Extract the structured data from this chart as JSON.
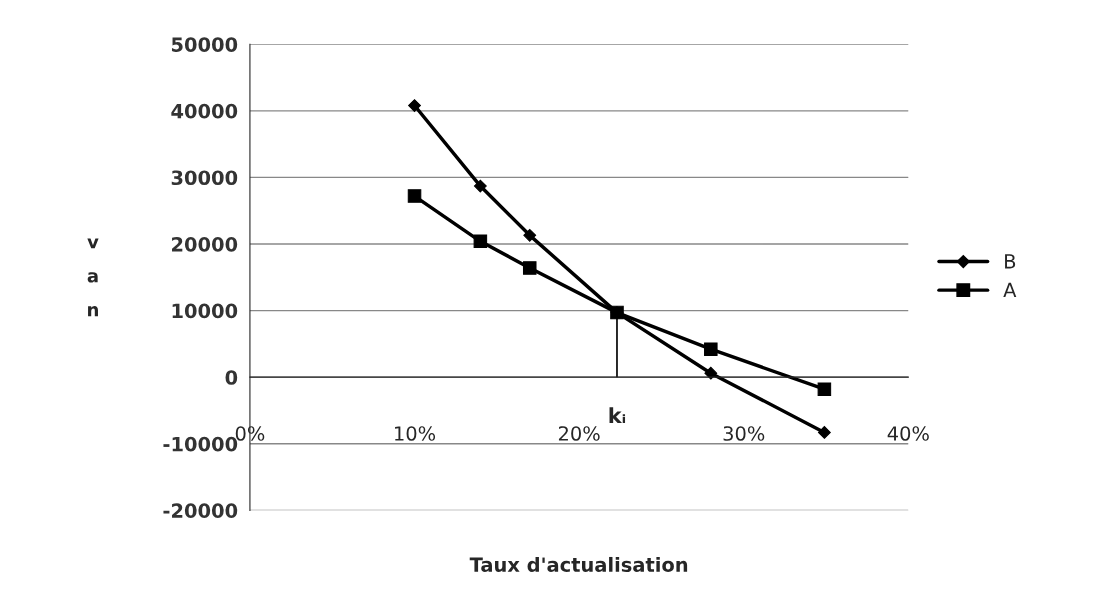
{
  "chart_data": {
    "type": "line",
    "xlabel": "Taux d'actualisation",
    "ylabel": "v\na\nn",
    "xlim": [
      0,
      40
    ],
    "xticks": [
      {
        "value": 0,
        "label": "0%"
      },
      {
        "value": 10,
        "label": "10%"
      },
      {
        "value": 20,
        "label": "20%"
      },
      {
        "value": 30,
        "label": "30%"
      },
      {
        "value": 40,
        "label": "40%"
      }
    ],
    "ylim": [
      -20000,
      50000
    ],
    "yticks": [
      -20000,
      -10000,
      0,
      10000,
      20000,
      30000,
      40000,
      50000
    ],
    "grid": "y",
    "legend": "right",
    "series": [
      {
        "name": "B",
        "color": "#000000",
        "marker": "diamond",
        "x": [
          10,
          14,
          17,
          22.3,
          28,
          34.9
        ],
        "values": [
          40800,
          28700,
          21300,
          9700,
          600,
          -8300
        ]
      },
      {
        "name": "A",
        "color": "#000000",
        "marker": "square",
        "x": [
          10,
          14,
          17,
          22.3,
          28,
          34.9
        ],
        "values": [
          27200,
          20400,
          16400,
          9700,
          4200,
          -1800
        ]
      }
    ],
    "ref_lines": [
      {
        "axis": "x",
        "value": 22.3,
        "label": "kᵢ",
        "color": "#000000"
      }
    ]
  }
}
